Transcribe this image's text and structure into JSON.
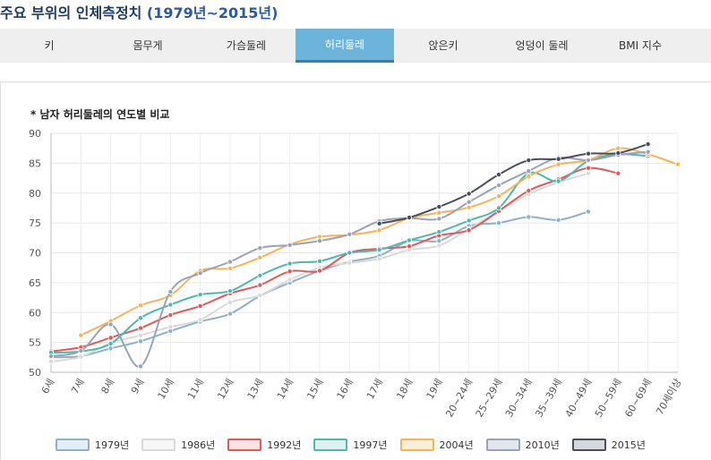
{
  "page": {
    "title_prefix": "주요 부위의 인체측정치 ",
    "title_years": "(1979년~2015년)"
  },
  "tabs": [
    {
      "label": "키",
      "active": false
    },
    {
      "label": "몸무게",
      "active": false
    },
    {
      "label": "가슴둘레",
      "active": false
    },
    {
      "label": "허리둘레",
      "active": true
    },
    {
      "label": "앉은키",
      "active": false
    },
    {
      "label": "엉덩이 둘레",
      "active": false
    },
    {
      "label": "BMI 지수",
      "active": false
    }
  ],
  "chart_data": {
    "type": "line",
    "title": "* 남자 허리둘레의 연도별 비교",
    "categories": [
      "6세",
      "7세",
      "8세",
      "9세",
      "10세",
      "11세",
      "12세",
      "13세",
      "14세",
      "15세",
      "16세",
      "17세",
      "18세",
      "19세",
      "20~24세",
      "25~29세",
      "30~34세",
      "35~39세",
      "40~49세",
      "50~59세",
      "60~69세",
      "70세이상"
    ],
    "ylim": [
      50,
      90
    ],
    "yticks": [
      50,
      55,
      60,
      65,
      70,
      75,
      80,
      85,
      90
    ],
    "grid": true,
    "legend_position": "bottom",
    "series": [
      {
        "name": "1979년",
        "color": "#8fb0c9",
        "fill": "#e3eef6",
        "values": [
          52.5,
          52.7,
          54.0,
          55.2,
          56.9,
          58.5,
          59.8,
          62.8,
          65.0,
          67.0,
          68.5,
          69.5,
          72.0,
          72.0,
          74.5,
          75.0,
          76.0,
          75.5,
          76.9,
          null,
          null,
          null
        ]
      },
      {
        "name": "1986년",
        "color": "#d9d9d9",
        "fill": "#f7f7f7",
        "values": [
          51.8,
          52.6,
          54.9,
          56.2,
          57.6,
          58.8,
          61.7,
          62.9,
          65.5,
          67.5,
          68.3,
          69.0,
          70.5,
          71.2,
          74.0,
          77.0,
          79.8,
          81.8,
          83.3,
          null,
          null,
          null
        ]
      },
      {
        "name": "1992년",
        "color": "#e05a5a",
        "fill": "#fbe3e3",
        "values": [
          53.5,
          54.2,
          55.8,
          57.4,
          59.6,
          61.1,
          63.2,
          64.6,
          66.9,
          67.0,
          70.0,
          70.7,
          71.1,
          72.9,
          73.8,
          77.0,
          80.4,
          82.3,
          84.2,
          83.3,
          null,
          null
        ]
      },
      {
        "name": "1997년",
        "color": "#4fb8ad",
        "fill": "#dff2f0",
        "values": [
          53.3,
          53.5,
          54.8,
          59.1,
          61.3,
          63.0,
          63.6,
          66.2,
          68.2,
          68.6,
          70.0,
          70.5,
          72.1,
          73.5,
          75.4,
          77.5,
          83.3,
          82.0,
          85.4,
          86.5,
          86.2,
          null
        ]
      },
      {
        "name": "2004년",
        "color": "#f5b35c",
        "fill": "#fdeed9",
        "values": [
          null,
          56.2,
          58.6,
          61.2,
          62.9,
          67.0,
          67.4,
          69.2,
          71.4,
          72.7,
          73.0,
          73.8,
          75.8,
          76.7,
          77.6,
          79.5,
          82.8,
          84.8,
          85.5,
          87.5,
          86.5,
          84.8
        ]
      },
      {
        "name": "2010년",
        "color": "#9aa3b5",
        "fill": "#e3e6ed",
        "values": [
          52.7,
          53.6,
          58.0,
          51.0,
          63.5,
          66.6,
          68.5,
          70.8,
          71.3,
          72.0,
          73.1,
          75.3,
          75.8,
          75.7,
          78.5,
          81.3,
          83.7,
          85.9,
          85.5,
          86.4,
          86.9,
          null
        ]
      },
      {
        "name": "2015년",
        "color": "#4a4e5a",
        "fill": "#d5d7dc",
        "values": [
          null,
          null,
          null,
          null,
          null,
          null,
          null,
          null,
          null,
          null,
          null,
          74.9,
          75.9,
          77.7,
          79.9,
          83.1,
          85.5,
          85.7,
          86.6,
          86.7,
          88.2,
          null
        ]
      }
    ]
  }
}
